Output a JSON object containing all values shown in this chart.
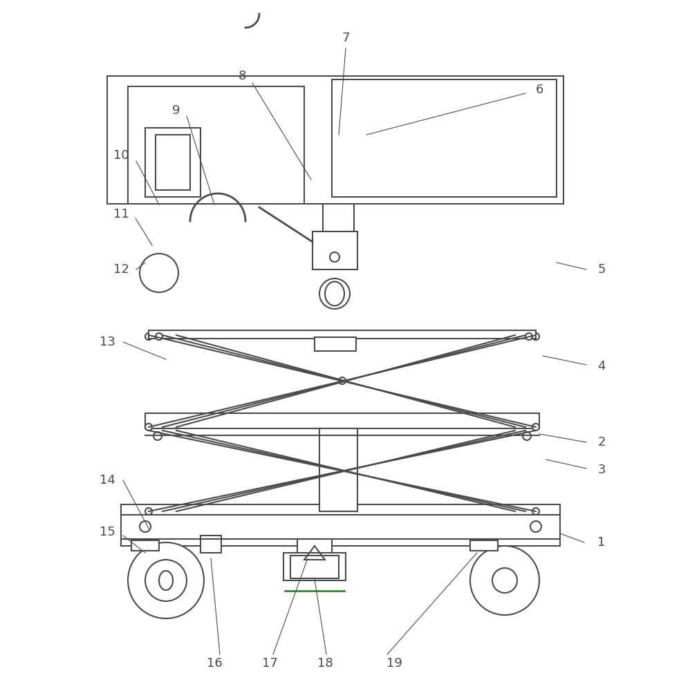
{
  "bg_color": "#ffffff",
  "line_color": "#4a4a4a",
  "line_width": 1.5,
  "label_color": "#4a4a4a",
  "label_fontsize": 13
}
